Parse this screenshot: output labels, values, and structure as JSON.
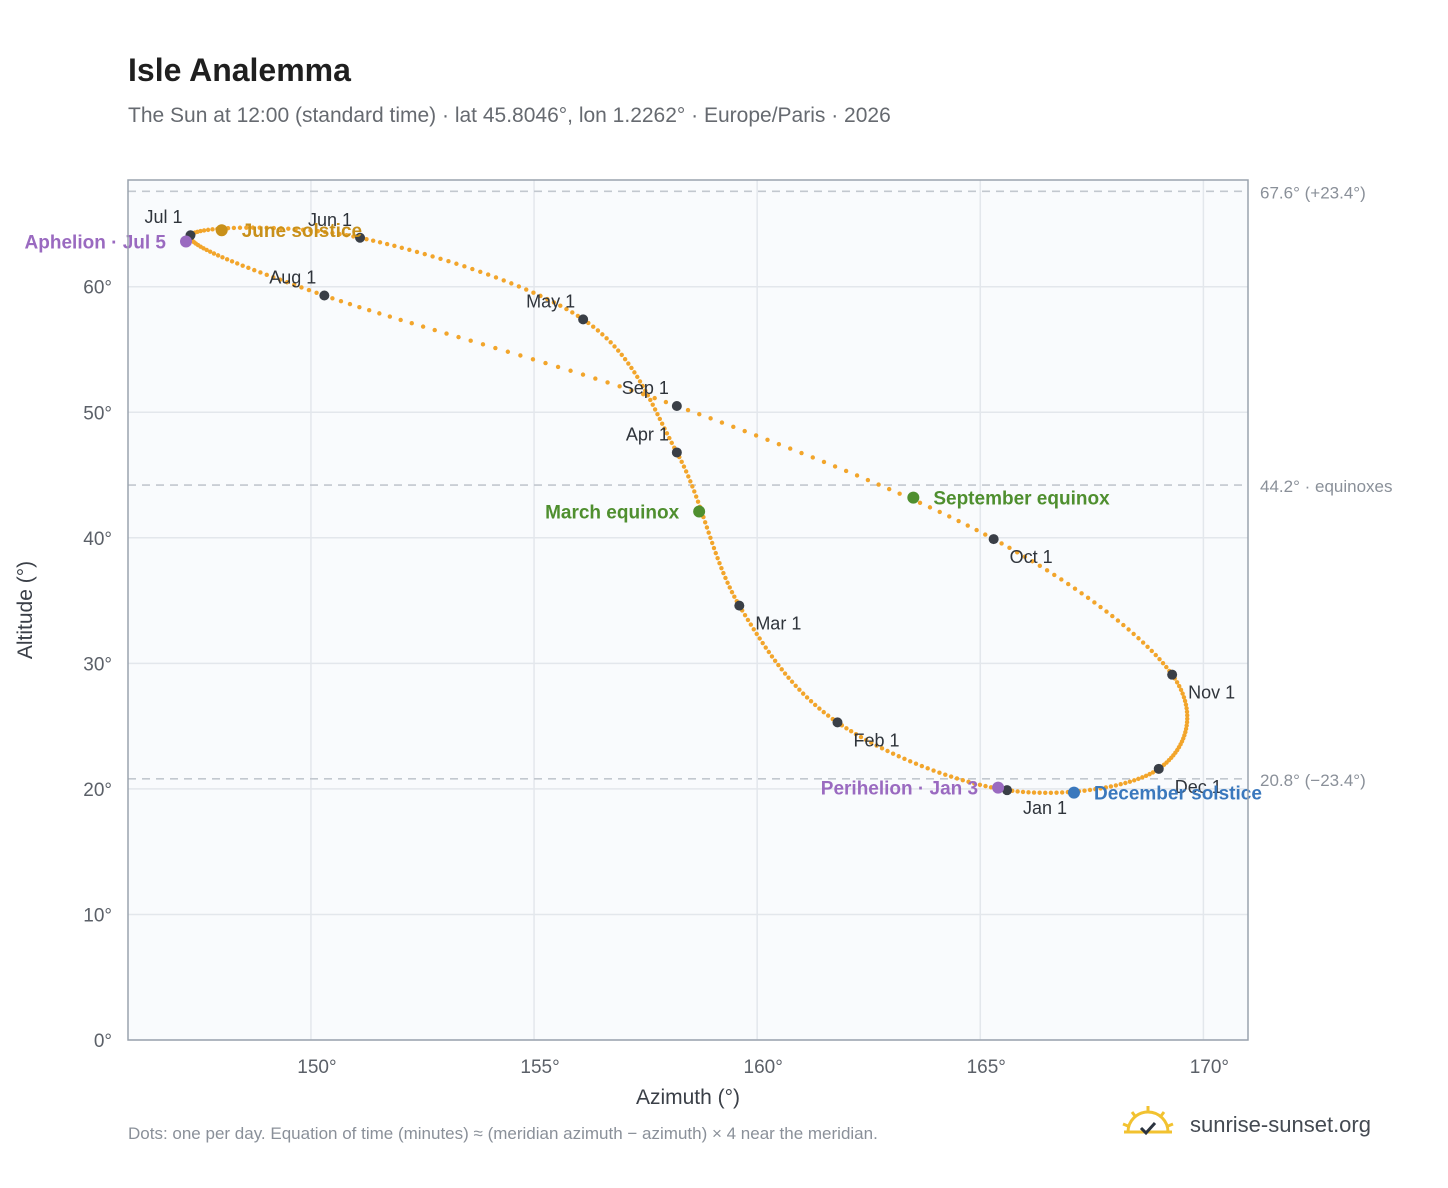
{
  "title": "Isle Analemma",
  "subtitle": "The Sun at 12:00 (standard time) · lat 45.8046°, lon 1.2262° · Europe/Paris · 2026",
  "footnote": "Dots: one per day. Equation of time (minutes) ≈ (meridian azimuth − azimuth) × 4 near the meridian.",
  "brand": "sunrise-sunset.org",
  "colors": {
    "curve": "#f2a52b",
    "month_marker": "#3a3f47",
    "equinox": "#4f8f2f",
    "june_solstice": "#c8901a",
    "december_solstice": "#3a78bd",
    "apsis": "#9a6ac0",
    "plot_bg": "#f9fbfd",
    "grid": "#e3e7ec",
    "reference_line": "#c2c8cf",
    "axis_text": "#5b6068"
  },
  "chart_data": {
    "type": "scatter",
    "xlabel": "Azimuth (°)",
    "ylabel": "Altitude (°)",
    "xlim": [
      145.9,
      171.0
    ],
    "ylim": [
      0,
      68.5
    ],
    "x_ticks": [
      {
        "value": 150,
        "label": "150°"
      },
      {
        "value": 155,
        "label": "155°"
      },
      {
        "value": 160,
        "label": "160°"
      },
      {
        "value": 165,
        "label": "165°"
      },
      {
        "value": 170,
        "label": "170°"
      }
    ],
    "y_ticks": [
      {
        "value": 0,
        "label": "0°"
      },
      {
        "value": 10,
        "label": "10°"
      },
      {
        "value": 20,
        "label": "20°"
      },
      {
        "value": 30,
        "label": "30°"
      },
      {
        "value": 40,
        "label": "40°"
      },
      {
        "value": 50,
        "label": "50°"
      },
      {
        "value": 60,
        "label": "60°"
      }
    ],
    "grid": true,
    "reference_lines": [
      {
        "value": 67.6,
        "label": "67.6° (+23.4°)"
      },
      {
        "value": 44.2,
        "label": "44.2° · equinoxes"
      },
      {
        "value": 20.8,
        "label": "20.8° (−23.4°)"
      }
    ],
    "series_daily_path": {
      "keypoints": [
        {
          "label": "Jan 1",
          "x": 165.6,
          "y": 19.9
        },
        {
          "label": "Feb 1",
          "x": 161.8,
          "y": 25.3
        },
        {
          "label": "Mar 1",
          "x": 159.6,
          "y": 34.6
        },
        {
          "label": "Apr 1",
          "x": 158.2,
          "y": 46.8
        },
        {
          "label": "May 1",
          "x": 156.1,
          "y": 57.4
        },
        {
          "label": "Jun 1",
          "x": 151.1,
          "y": 63.9
        },
        {
          "label": "Jul 1",
          "x": 147.3,
          "y": 64.1
        },
        {
          "label": "Aug 1",
          "x": 150.3,
          "y": 59.3
        },
        {
          "label": "Sep 1",
          "x": 158.2,
          "y": 50.5
        },
        {
          "label": "Oct 1",
          "x": 165.3,
          "y": 39.9
        },
        {
          "label": "Nov 1",
          "x": 169.3,
          "y": 29.1
        },
        {
          "label": "Dec 1",
          "x": 169.0,
          "y": 21.6
        },
        {
          "label": "Jan 1",
          "x": 165.6,
          "y": 19.9
        }
      ]
    },
    "month_markers": [
      {
        "label": "Jan 1",
        "x": 165.6,
        "y": 19.9,
        "anchor": "below-right"
      },
      {
        "label": "Feb 1",
        "x": 161.8,
        "y": 25.3,
        "anchor": "below-right"
      },
      {
        "label": "Mar 1",
        "x": 159.6,
        "y": 34.6,
        "anchor": "below-right"
      },
      {
        "label": "Apr 1",
        "x": 158.2,
        "y": 46.8,
        "anchor": "above-left"
      },
      {
        "label": "May 1",
        "x": 156.1,
        "y": 57.4,
        "anchor": "above-left"
      },
      {
        "label": "Jun 1",
        "x": 151.1,
        "y": 63.9,
        "anchor": "above-left"
      },
      {
        "label": "Jul 1",
        "x": 147.3,
        "y": 64.1,
        "anchor": "above-left"
      },
      {
        "label": "Aug 1",
        "x": 150.3,
        "y": 59.3,
        "anchor": "above-left"
      },
      {
        "label": "Sep 1",
        "x": 158.2,
        "y": 50.5,
        "anchor": "above-left"
      },
      {
        "label": "Oct 1",
        "x": 165.3,
        "y": 39.9,
        "anchor": "below-right"
      },
      {
        "label": "Nov 1",
        "x": 169.3,
        "y": 29.1,
        "anchor": "below-right"
      },
      {
        "label": "Dec 1",
        "x": 169.0,
        "y": 21.6,
        "anchor": "below-right"
      }
    ],
    "events": [
      {
        "label": "March equinox",
        "x": 158.7,
        "y": 42.1,
        "color_key": "equinox",
        "side": "left"
      },
      {
        "label": "September equinox",
        "x": 163.5,
        "y": 43.2,
        "color_key": "equinox",
        "side": "right"
      },
      {
        "label": "June solstice",
        "x": 148.0,
        "y": 64.5,
        "color_key": "june_solstice",
        "side": "right"
      },
      {
        "label": "December solstice",
        "x": 167.1,
        "y": 19.7,
        "color_key": "december_solstice",
        "side": "right"
      },
      {
        "label": "Aphelion · Jul 5",
        "x": 147.2,
        "y": 63.6,
        "color_key": "apsis",
        "side": "left"
      },
      {
        "label": "Perihelion · Jan 3",
        "x": 165.4,
        "y": 20.1,
        "color_key": "apsis",
        "side": "left"
      }
    ]
  }
}
